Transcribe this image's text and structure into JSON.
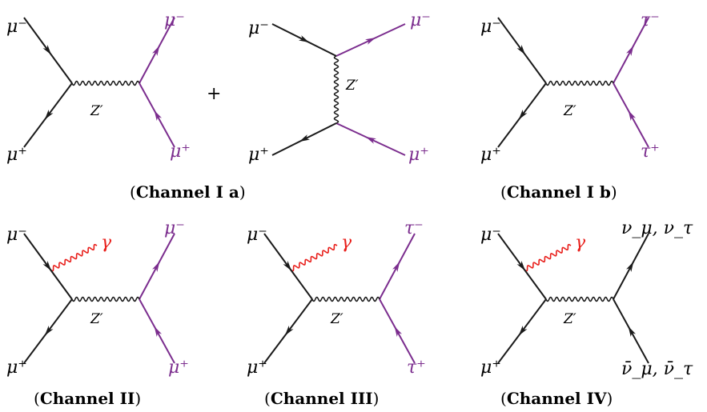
{
  "colors": {
    "black": "#1a1a1a",
    "purple": "#7b2d8e",
    "red": "#e8201c"
  },
  "symbols": {
    "mu_minus": "μ⁻",
    "mu_plus": "μ⁺",
    "tau_minus": "τ⁻",
    "tau_plus": "τ⁺",
    "z_prime": "Z′",
    "gamma": "γ",
    "plus_sign": "+",
    "nu_out": "ν_μ, ν_τ",
    "nubar_out": "ν̄_μ, ν̄_τ"
  },
  "captions": {
    "c1a": {
      "open": "(",
      "name": "Channel I a",
      "close": ")"
    },
    "c1b": {
      "open": "(",
      "name": "Channel I b",
      "close": ")"
    },
    "c2": {
      "open": "(",
      "name": "Channel II",
      "close": ")"
    },
    "c3": {
      "open": "(",
      "name": "Channel III",
      "close": ")"
    },
    "c4": {
      "open": "(",
      "name": "Channel IV",
      "close": ")"
    }
  }
}
